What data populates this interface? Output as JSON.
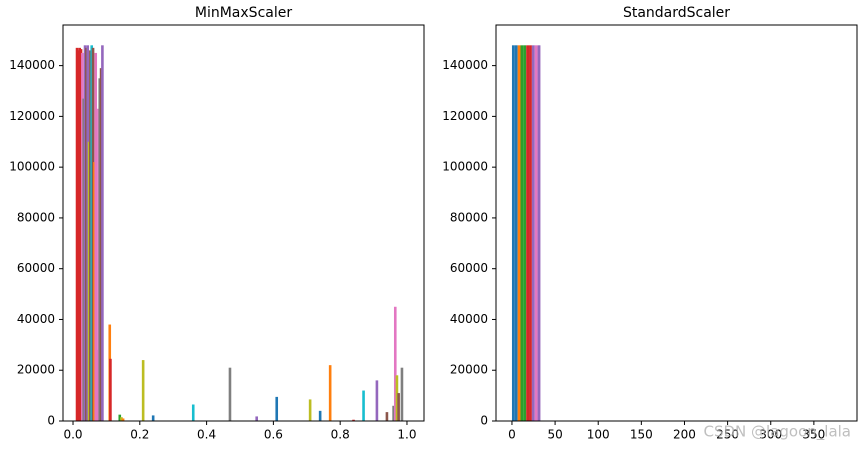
{
  "chart_data": [
    {
      "type": "bar",
      "title": "MinMaxScaler",
      "x": [
        0.012,
        0.016,
        0.02,
        0.024,
        0.028,
        0.032,
        0.036,
        0.04,
        0.044,
        0.048,
        0.052,
        0.056,
        0.06,
        0.064,
        0.068,
        0.072,
        0.076,
        0.08,
        0.084,
        0.088,
        0.11,
        0.112,
        0.14,
        0.145,
        0.15,
        0.21,
        0.24,
        0.36,
        0.47,
        0.55,
        0.61,
        0.71,
        0.74,
        0.77,
        0.84,
        0.87,
        0.91,
        0.94,
        0.96,
        0.965,
        0.97,
        0.975,
        0.985
      ],
      "values": [
        147000,
        146000,
        147000,
        146500,
        145000,
        127000,
        148000,
        147000,
        148000,
        110000,
        146000,
        148000,
        147000,
        102000,
        145000,
        28000,
        123000,
        135000,
        139000,
        148000,
        38000,
        24500,
        2500,
        1500,
        1000,
        24000,
        2200,
        6500,
        21000,
        1800,
        9500,
        8500,
        4000,
        22000,
        500,
        12000,
        16000,
        3500,
        6000,
        45000,
        18000,
        11000,
        21000
      ],
      "colors": [
        "#d62728",
        "#d62728",
        "#d62728",
        "#d62728",
        "#e377c2",
        "#7f7f7f",
        "#9467bd",
        "#8c564b",
        "#9467bd",
        "#bcbd22",
        "#8c564b",
        "#17becf",
        "#8c564b",
        "#ff7f0e",
        "#e377c2",
        "#e377c2",
        "#e377c2",
        "#7f7f7f",
        "#8c564b",
        "#9467bd",
        "#ff7f0e",
        "#d62728",
        "#2ca02c",
        "#bcbd22",
        "#ff7f0e",
        "#bcbd22",
        "#1f77b4",
        "#17becf",
        "#7f7f7f",
        "#9467bd",
        "#1f77b4",
        "#bcbd22",
        "#1f77b4",
        "#ff7f0e",
        "#d62728",
        "#17becf",
        "#9467bd",
        "#8c564b",
        "#7f7f7f",
        "#e377c2",
        "#bcbd22",
        "#8c564b",
        "#7f7f7f"
      ],
      "xlim": [
        -0.03,
        1.051
      ],
      "xticks": [
        {
          "value": 0,
          "label": "0.0"
        },
        0.2,
        0.4,
        0.6,
        0.8,
        {
          "value": 1,
          "label": "1.0"
        }
      ],
      "ylim": [
        0,
        156000
      ],
      "yticks": [
        0,
        20000,
        40000,
        60000,
        80000,
        100000,
        120000,
        140000
      ]
    },
    {
      "type": "histogram",
      "title": "StandardScaler",
      "bins": [
        0,
        3.3,
        6.6,
        9.9,
        13.2,
        16.5,
        19.8,
        23.1,
        26.4,
        29.7,
        33
      ],
      "values": [
        148000,
        148000,
        148000,
        148000,
        148000,
        148000,
        148000,
        148000,
        148000,
        148000
      ],
      "colors": [
        "#1f77b4",
        "#1f77b4",
        "#ff7f0e",
        "#2ca02c",
        "#2ca02c",
        "#d62728",
        "#d62728",
        "#9467bd",
        "#e377c2",
        "#9467bd"
      ],
      "xlim": [
        -18.5,
        400
      ],
      "xticks": [
        0,
        50,
        100,
        150,
        200,
        250,
        300,
        350
      ],
      "ylim": [
        0,
        156000
      ],
      "yticks": [
        0,
        20000,
        40000,
        60000,
        80000,
        100000,
        120000,
        140000
      ],
      "watermark": "CSDN @lagoon_lala"
    }
  ]
}
